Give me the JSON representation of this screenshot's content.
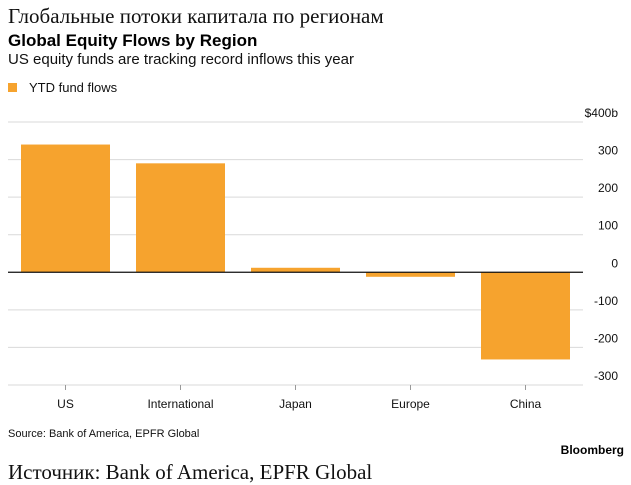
{
  "header": {
    "heading_ru": "Глобальные потоки капитала по регионам",
    "title": "Global Equity Flows by Region",
    "subtitle": "US equity funds are tracking record inflows this year"
  },
  "legend": {
    "label": "YTD fund flows"
  },
  "colors": {
    "bar": "#f6a32e",
    "gridline": "#d9d9d9",
    "zero_line": "#111111"
  },
  "chart_data": {
    "type": "bar",
    "categories": [
      "US",
      "International",
      "Japan",
      "Europe",
      "China"
    ],
    "series": [
      {
        "name": "YTD fund flows",
        "values": [
          340,
          290,
          12,
          -12,
          -232
        ]
      }
    ],
    "y_ticks": [
      {
        "value": 400,
        "label": "$400b"
      },
      {
        "value": 300,
        "label": "300"
      },
      {
        "value": 200,
        "label": "200"
      },
      {
        "value": 100,
        "label": "100"
      },
      {
        "value": 0,
        "label": "0"
      },
      {
        "value": -100,
        "label": "-100"
      },
      {
        "value": -200,
        "label": "-200"
      },
      {
        "value": -300,
        "label": "-300"
      }
    ],
    "ylim": [
      -300,
      400
    ],
    "y_axis_position": "right",
    "grid": true,
    "legend_position": "top-left"
  },
  "footer": {
    "source": "Source: Bank of America, EPFR Global",
    "brand": "Bloomberg",
    "source_ru": "Источник: Bank of America, EPFR Global"
  }
}
